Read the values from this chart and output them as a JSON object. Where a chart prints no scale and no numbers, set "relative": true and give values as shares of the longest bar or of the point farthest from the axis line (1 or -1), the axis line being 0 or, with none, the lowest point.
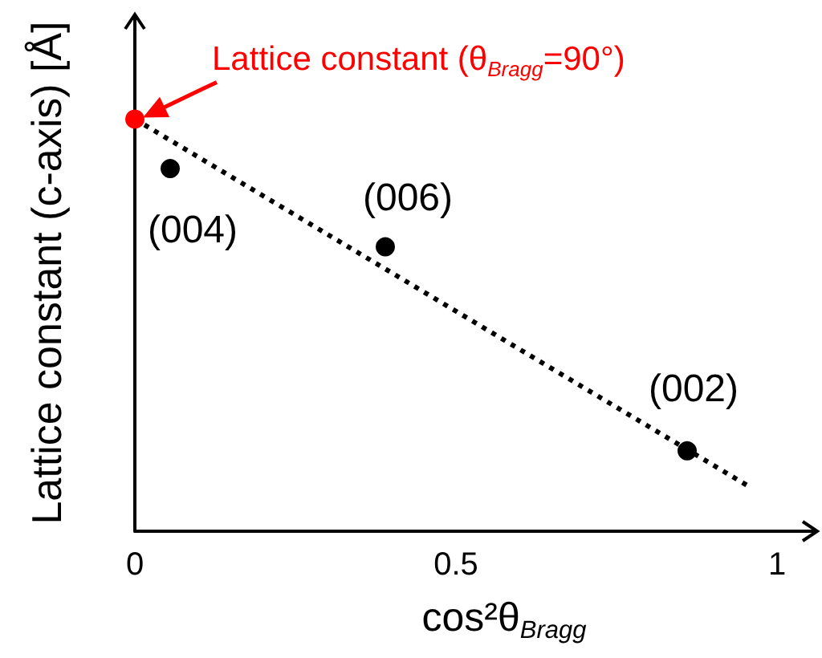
{
  "chart_data": {
    "type": "scatter",
    "xlabel": "cos²θ$_{Bragg}$",
    "ylabel": "Lattice constant (c-axis) [Å]",
    "relative": true,
    "xlim": [
      0,
      1.06
    ],
    "xticks": [
      0,
      0.5,
      1
    ],
    "series": [
      {
        "type": "line",
        "x": [
          0,
          0.96
        ],
        "values": [
          1,
          0.105
        ],
        "color": "#000000",
        "marker": "none",
        "line_style": "dotted"
      },
      {
        "x": [
          0.055,
          0.39,
          0.86
        ],
        "values": [
          0.88,
          0.69,
          0.195
        ],
        "color": "#000000",
        "marker": "circle"
      },
      {
        "x": [
          0
        ],
        "values": [
          1
        ],
        "color": "#ff0000",
        "marker": "circle"
      }
    ],
    "annotations": [
      {
        "text": "Lattice constant (θ$_{Bragg}$=90°)",
        "x": 0,
        "y": 1
      },
      {
        "text": "(004)",
        "x": 0.055,
        "y": 0.88
      },
      {
        "text": "(006)",
        "x": 0.39,
        "y": 0.69
      },
      {
        "text": "(002)",
        "x": 0.86,
        "y": 0.195
      }
    ]
  }
}
